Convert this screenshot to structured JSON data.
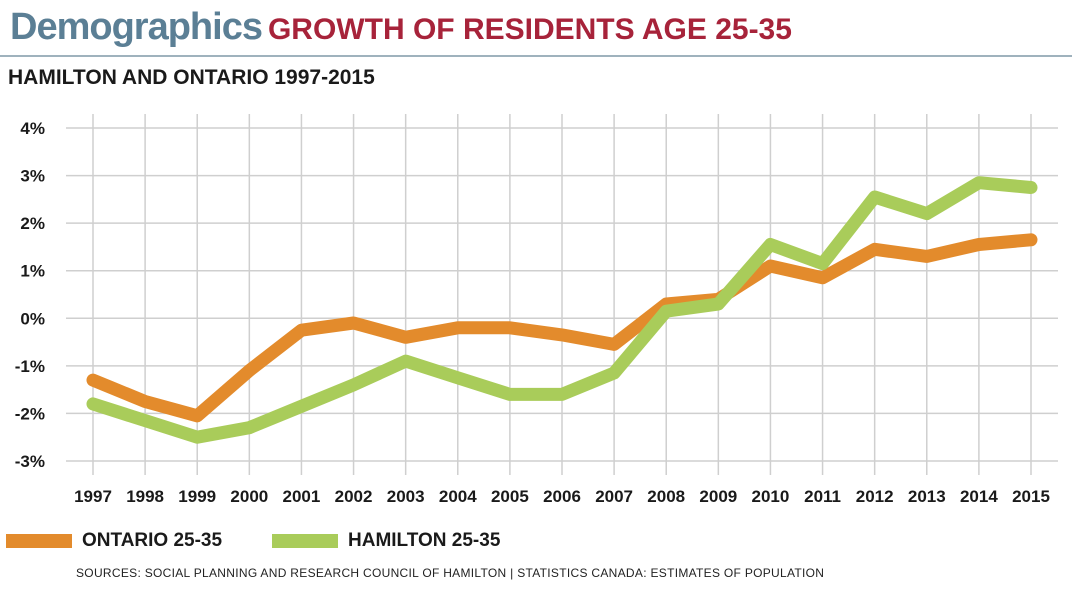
{
  "header": {
    "brand": "Demographics",
    "title": "GROWTH OF RESIDENTS AGE 25-35",
    "subtitle": "HAMILTON AND ONTARIO 1997-2015"
  },
  "chart_data": {
    "type": "line",
    "title": "GROWTH OF RESIDENTS AGE 25-35",
    "subtitle": "HAMILTON AND ONTARIO 1997-2015",
    "x": [
      "1997",
      "1998",
      "1999",
      "2000",
      "2001",
      "2002",
      "2003",
      "2004",
      "2005",
      "2006",
      "2007",
      "2008",
      "2009",
      "2010",
      "2011",
      "2012",
      "2013",
      "2014",
      "2015"
    ],
    "ylim": [
      -3,
      4
    ],
    "yticks": [
      4,
      3,
      2,
      1,
      0,
      -1,
      -2,
      -3
    ],
    "ytick_labels": [
      "4%",
      "3%",
      "2%",
      "1%",
      "0%",
      "-1%",
      "-2%",
      "-3%"
    ],
    "grid": true,
    "legend_position": "bottom-left",
    "series": [
      {
        "name": "ONTARIO 25-35",
        "color": "#e38b2c",
        "values": [
          -1.3,
          -1.75,
          -2.05,
          -1.1,
          -0.25,
          -0.1,
          -0.4,
          -0.2,
          -0.2,
          -0.35,
          -0.55,
          0.3,
          0.4,
          1.1,
          0.85,
          1.45,
          1.3,
          1.55,
          1.65
        ]
      },
      {
        "name": "HAMILTON 25-35",
        "color": "#a9cc5a",
        "values": [
          -1.8,
          -2.15,
          -2.5,
          -2.3,
          -1.85,
          -1.4,
          -0.9,
          -1.25,
          -1.6,
          -1.6,
          -1.15,
          0.15,
          0.3,
          1.55,
          1.15,
          2.55,
          2.2,
          2.85,
          2.75
        ]
      }
    ]
  },
  "legend": {
    "items": [
      {
        "label": "ONTARIO 25-35",
        "color": "#e38b2c"
      },
      {
        "label": "HAMILTON 25-35",
        "color": "#a9cc5a"
      }
    ]
  },
  "footer": {
    "source": "SOURCES: SOCIAL PLANNING AND RESEARCH COUNCIL OF HAMILTON | STATISTICS CANADA: ESTIMATES OF POPULATION"
  }
}
